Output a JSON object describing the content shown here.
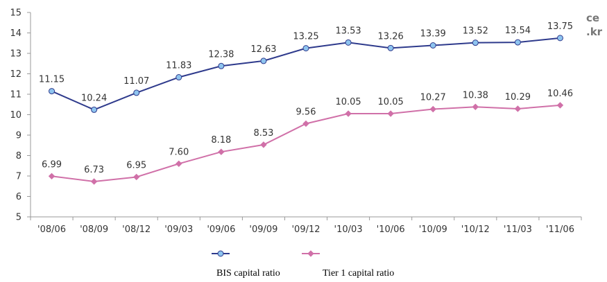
{
  "chart_data": {
    "type": "line",
    "title": "",
    "xlabel": "",
    "ylabel": "",
    "categories": [
      "'08/06",
      "'08/09",
      "'08/12",
      "'09/03",
      "'09/06",
      "'09/09",
      "'09/12",
      "'10/03",
      "'10/06",
      "'10/09",
      "'10/12",
      "'11/03",
      "'11/06"
    ],
    "ylim": [
      5,
      15
    ],
    "yticks": [
      "5",
      "6",
      "7",
      "8",
      "9",
      "10",
      "11",
      "12",
      "13",
      "14",
      "15"
    ],
    "grid": false,
    "legend_position": "bottom",
    "series": [
      {
        "name": "BIS capital ratio",
        "color": "#2e3a8c",
        "marker_color": "#8ec4ef",
        "values": [
          11.15,
          10.24,
          11.07,
          11.83,
          12.38,
          12.63,
          13.25,
          13.53,
          13.26,
          13.39,
          13.52,
          13.54,
          13.75
        ],
        "labels": [
          "11.15",
          "10.24",
          "11.07",
          "11.83",
          "12.38",
          "12.63",
          "13.25",
          "13.53",
          "13.26",
          "13.39",
          "13.52",
          "13.54",
          "13.75"
        ]
      },
      {
        "name": "Tier 1 capital ratio",
        "color": "#d070a8",
        "marker_color": "#d070a8",
        "values": [
          6.99,
          6.73,
          6.95,
          7.6,
          8.18,
          8.53,
          9.56,
          10.05,
          10.05,
          10.27,
          10.38,
          10.29,
          10.46
        ],
        "labels": [
          "6.99",
          "6.73",
          "6.95",
          "7.60",
          "8.18",
          "8.53",
          "9.56",
          "10.05",
          "10.05",
          "10.27",
          "10.38",
          "10.29",
          "10.46"
        ]
      }
    ]
  },
  "corner_text": [
    "ce",
    ".kr"
  ]
}
